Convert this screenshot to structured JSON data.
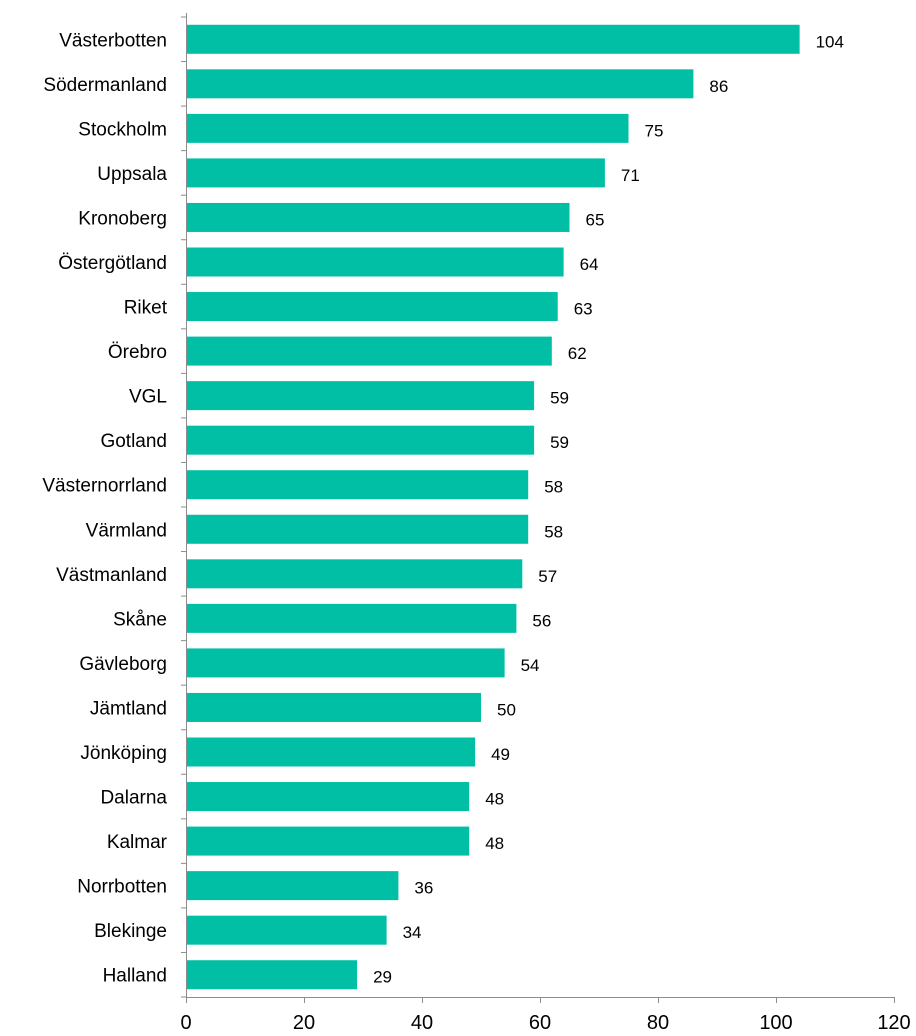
{
  "chart_data": {
    "type": "bar",
    "orientation": "horizontal",
    "title": "",
    "xlabel": "",
    "ylabel": "",
    "categories": [
      "Västerbotten",
      "Södermanland",
      "Stockholm",
      "Uppsala",
      "Kronoberg",
      "Östergötland",
      "Riket",
      "Örebro",
      "VGL",
      "Gotland",
      "Västernorrland",
      "Värmland",
      "Västmanland",
      "Skåne",
      "Gävleborg",
      "Jämtland",
      "Jönköping",
      "Dalarna",
      "Kalmar",
      "Norrbotten",
      "Blekinge",
      "Halland"
    ],
    "values": [
      104,
      86,
      75,
      71,
      65,
      64,
      63,
      62,
      59,
      59,
      58,
      58,
      57,
      56,
      54,
      50,
      49,
      48,
      48,
      36,
      34,
      29
    ],
    "data_labels": [
      "104",
      "86",
      "75",
      "71",
      "65",
      "64",
      "63",
      "62",
      "59",
      "59",
      "58",
      "58",
      "57",
      "56",
      "54",
      "50",
      "49",
      "48",
      "48",
      "36",
      "34",
      "29"
    ],
    "xlim": [
      0,
      120
    ],
    "xticks": [
      0,
      20,
      40,
      60,
      80,
      100,
      120
    ],
    "xtick_labels": [
      "0",
      "20",
      "40",
      "60",
      "80",
      "100",
      "120"
    ],
    "bar_color": "#00BFA5",
    "grid": false,
    "legend": "none"
  }
}
